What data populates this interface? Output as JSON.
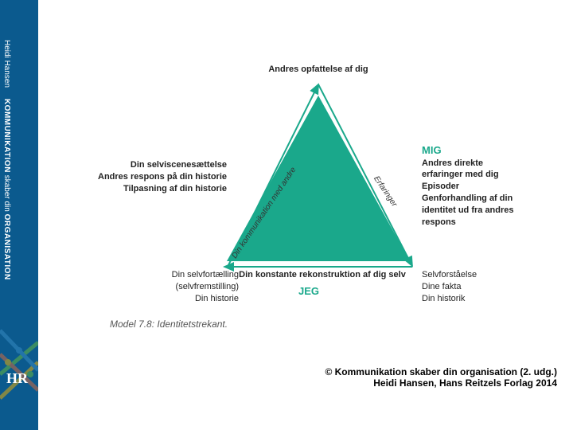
{
  "sidebar": {
    "author": "Heidi Hansen",
    "title_part1": "KOMMUNIKATION",
    "title_part2": "skaber din",
    "title_part3": "ORGANISATION",
    "logo": "HR",
    "bg_color": "#0b5a8e",
    "text_color": "#ffffff"
  },
  "diagram": {
    "type": "triangle",
    "triangle_fill": "#1aa88b",
    "arrow_color": "#1aa88b",
    "apex_label": "Andres opfattelse af dig",
    "left_mid_label": "Din selviscenesættelse\nAndres respons på din historie\nTilpasning af din historie",
    "right_mid_heading": "MIG",
    "right_mid_label": "Andres direkte\nerfaringer med dig\nEpisoder\nGenforhandling af din\nidentitet ud fra andres\nrespons",
    "bottom_left_label": "Din selvfortælling\n(selvfremstilling)\nDin historie",
    "bottom_right_label": "Selvforståelse\nDine fakta\nDin historik",
    "bottom_center_label": "Din konstante rekonstruktion af dig selv",
    "jeg_label": "JEG",
    "edge_left_label": "Din kommunikation med andre",
    "edge_right_label": "Erfaringer",
    "vertices": {
      "apex": [
        290,
        30
      ],
      "bottom_left": [
        170,
        250
      ],
      "bottom_right": [
        410,
        250
      ]
    }
  },
  "caption": "Model 7.8: Identitetstrekant.",
  "footer": {
    "line1": "© Kommunikation skaber din organisation (2. udg.)",
    "line2": "Heidi Hansen, Hans Reitzels Forlag 2014"
  },
  "colors": {
    "background": "#ffffff",
    "text": "#222222",
    "accent": "#1aa88b",
    "sidebar": "#0b5a8e",
    "caption": "#555555"
  }
}
